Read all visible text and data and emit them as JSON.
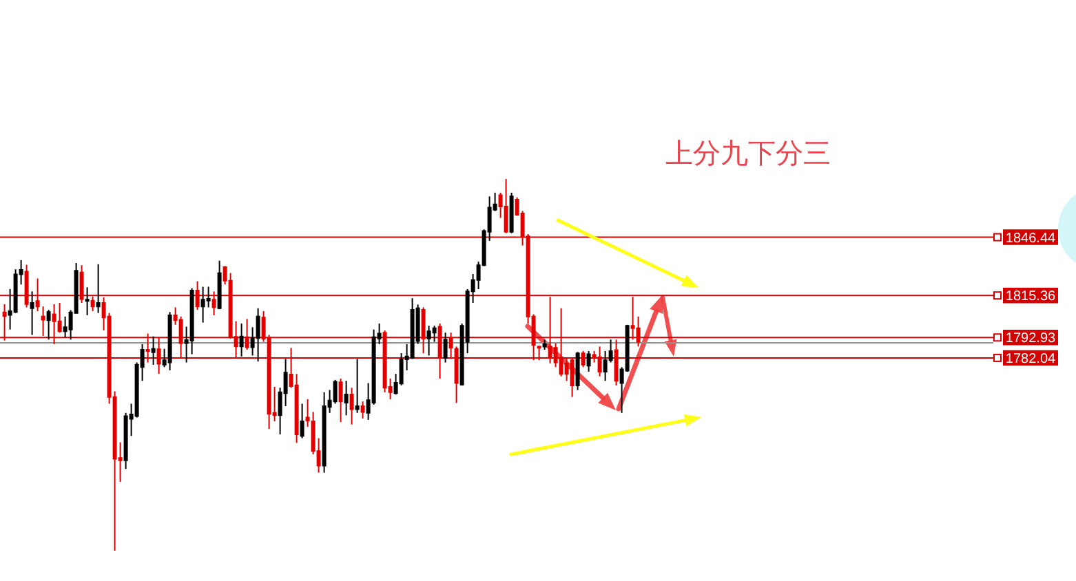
{
  "chart_data": {
    "type": "candlestick",
    "categories": [
      null,
      null,
      null,
      null,
      null,
      null,
      null,
      null,
      null,
      null,
      null,
      null,
      null,
      null,
      null,
      null,
      null,
      null,
      null,
      null,
      null,
      null,
      null,
      null,
      null,
      null,
      null,
      null,
      null,
      null,
      null,
      null,
      null,
      null,
      null,
      null,
      null,
      null,
      null,
      null,
      null,
      null,
      null,
      null,
      null,
      null,
      null,
      null,
      null,
      null,
      null,
      null,
      null,
      null,
      null,
      null,
      null,
      null,
      null,
      null,
      null,
      null,
      null,
      null,
      null,
      null,
      null,
      null,
      null,
      null,
      null,
      null,
      null,
      null,
      null,
      null,
      null,
      null,
      null,
      null,
      null,
      null,
      null,
      null,
      null,
      null,
      null,
      null,
      null,
      null,
      null,
      null,
      null,
      null,
      null,
      null,
      null,
      null,
      null,
      null,
      null,
      null,
      null,
      null,
      null,
      null,
      null,
      null,
      null,
      null,
      null,
      null,
      null,
      null,
      null,
      null
    ],
    "ohlc": [
      [
        1806.3,
        1810.7,
        1791.3,
        1804.3
      ],
      [
        1805.0,
        1818.8,
        1797.2,
        1807.0
      ],
      [
        1806.5,
        1829.3,
        1806.0,
        1826.6
      ],
      [
        1826.6,
        1834.2,
        1821.2,
        1829.0
      ],
      [
        1828.1,
        1831.7,
        1809.0,
        1810.7
      ],
      [
        1808.5,
        1817.5,
        1794.3,
        1811.4
      ],
      [
        1812.4,
        1824.4,
        1807.0,
        1809.5
      ],
      [
        1804.1,
        1809.5,
        1793.8,
        1802.4
      ],
      [
        1802.1,
        1807.7,
        1791.8,
        1806.5
      ],
      [
        1805.3,
        1810.7,
        1789.4,
        1801.6
      ],
      [
        1801.6,
        1811.4,
        1795.5,
        1796.2
      ],
      [
        1796.2,
        1804.1,
        1793.1,
        1798.4
      ],
      [
        1797.2,
        1807.5,
        1791.8,
        1806.3
      ],
      [
        1806.0,
        1832.7,
        1805.8,
        1828.6
      ],
      [
        1827.6,
        1831.5,
        1811.4,
        1813.4
      ],
      [
        1812.4,
        1819.7,
        1804.8,
        1813.1
      ],
      [
        1812.6,
        1814.8,
        1807.0,
        1809.5
      ],
      [
        1809.5,
        1832.0,
        1806.0,
        1811.4
      ],
      [
        1811.4,
        1814.3,
        1796.7,
        1803.6
      ],
      [
        1804.1,
        1806.0,
        1757.6,
        1761.2
      ],
      [
        1761.2,
        1764.2,
        1679.2,
        1728.2
      ],
      [
        1728.7,
        1737.0,
        1715.9,
        1727.4
      ],
      [
        1727.4,
        1752.7,
        1722.8,
        1751.0
      ],
      [
        1749.5,
        1757.6,
        1740.4,
        1751.9
      ],
      [
        1751.0,
        1779.6,
        1750.2,
        1778.4
      ],
      [
        1777.1,
        1789.4,
        1769.8,
        1786.4
      ],
      [
        1786.4,
        1795.0,
        1779.6,
        1785.7
      ],
      [
        1785.0,
        1793.5,
        1778.4,
        1786.9
      ],
      [
        1786.7,
        1793.1,
        1773.5,
        1778.9
      ],
      [
        1778.4,
        1786.9,
        1777.1,
        1780.8
      ],
      [
        1779.6,
        1806.5,
        1775.4,
        1804.8
      ],
      [
        1804.8,
        1809.0,
        1799.7,
        1802.1
      ],
      [
        1802.4,
        1804.1,
        1782.0,
        1789.9
      ],
      [
        1789.9,
        1798.7,
        1779.6,
        1791.6
      ],
      [
        1791.3,
        1819.2,
        1784.0,
        1818.0
      ],
      [
        1818.0,
        1822.9,
        1807.7,
        1809.5
      ],
      [
        1809.5,
        1820.0,
        1800.9,
        1813.1
      ],
      [
        1812.6,
        1820.0,
        1809.0,
        1813.6
      ],
      [
        1813.1,
        1817.5,
        1804.8,
        1809.0
      ],
      [
        1808.5,
        1833.9,
        1808.0,
        1827.3
      ],
      [
        1830.5,
        1831.0,
        1821.2,
        1823.2
      ],
      [
        1823.2,
        1827.3,
        1792.3,
        1793.1
      ],
      [
        1793.3,
        1801.6,
        1782.0,
        1788.2
      ],
      [
        1788.2,
        1800.4,
        1782.8,
        1793.5
      ],
      [
        1793.1,
        1802.8,
        1786.4,
        1787.7
      ],
      [
        1787.7,
        1798.4,
        1783.3,
        1792.6
      ],
      [
        1792.6,
        1808.5,
        1780.1,
        1804.1
      ],
      [
        1803.6,
        1807.0,
        1790.6,
        1792.3
      ],
      [
        1792.8,
        1794.3,
        1744.1,
        1752.2
      ],
      [
        1752.7,
        1766.6,
        1748.2,
        1751.4
      ],
      [
        1751.4,
        1766.1,
        1741.2,
        1763.7
      ],
      [
        1763.2,
        1781.5,
        1756.3,
        1774.2
      ],
      [
        1773.2,
        1787.4,
        1766.1,
        1766.9
      ],
      [
        1767.4,
        1773.5,
        1736.7,
        1741.2
      ],
      [
        1740.4,
        1757.6,
        1739.2,
        1748.2
      ],
      [
        1750.2,
        1760.0,
        1745.3,
        1748.5
      ],
      [
        1748.2,
        1753.2,
        1730.6,
        1732.3
      ],
      [
        1732.3,
        1739.2,
        1720.8,
        1724.5
      ],
      [
        1724.5,
        1763.7,
        1720.8,
        1756.3
      ],
      [
        1755.8,
        1764.9,
        1752.7,
        1759.3
      ],
      [
        1758.8,
        1770.3,
        1757.6,
        1769.3
      ],
      [
        1769.1,
        1771.0,
        1747.8,
        1758.8
      ],
      [
        1758.1,
        1769.8,
        1751.4,
        1762.5
      ],
      [
        1762.5,
        1766.1,
        1746.5,
        1754.6
      ],
      [
        1754.6,
        1781.5,
        1752.7,
        1756.3
      ],
      [
        1756.3,
        1758.8,
        1749.7,
        1753.2
      ],
      [
        1752.7,
        1768.6,
        1749.0,
        1759.5
      ],
      [
        1758.1,
        1797.2,
        1757.1,
        1793.1
      ],
      [
        1792.3,
        1800.4,
        1789.4,
        1795.0
      ],
      [
        1795.5,
        1796.7,
        1763.7,
        1766.1
      ],
      [
        1766.6,
        1771.0,
        1760.0,
        1763.7
      ],
      [
        1763.2,
        1773.5,
        1762.5,
        1768.8
      ],
      [
        1768.3,
        1784.5,
        1767.4,
        1781.3
      ],
      [
        1781.3,
        1789.4,
        1775.4,
        1782.8
      ],
      [
        1782.0,
        1813.9,
        1781.5,
        1807.7
      ],
      [
        1791.0,
        1810.5,
        1789.5,
        1808.5
      ],
      [
        1807.7,
        1809.0,
        1784.5,
        1792.3
      ],
      [
        1792.3,
        1799.2,
        1783.3,
        1796.2
      ],
      [
        1795.5,
        1799.2,
        1790.6,
        1797.9
      ],
      [
        1798.7,
        1800.4,
        1771.0,
        1782.0
      ],
      [
        1782.0,
        1795.5,
        1779.6,
        1791.8
      ],
      [
        1792.3,
        1795.5,
        1782.0,
        1787.4
      ],
      [
        1786.9,
        1788.1,
        1758.0,
        1768.6
      ],
      [
        1767.8,
        1800.4,
        1767.3,
        1799.2
      ],
      [
        1790.6,
        1818.7,
        1784.5,
        1817.5
      ],
      [
        1817.5,
        1826.8,
        1811.4,
        1823.6
      ],
      [
        1823.6,
        1833.4,
        1818.7,
        1831.5
      ],
      [
        1831.5,
        1850.6,
        1831.0,
        1849.8
      ],
      [
        1849.3,
        1868.2,
        1844.5,
        1862.3
      ],
      [
        1861.1,
        1870.2,
        1860.4,
        1864.0
      ],
      [
        1868.9,
        1870.2,
        1856.7,
        1862.8
      ],
      [
        1862.8,
        1877.5,
        1848.6,
        1849.3
      ],
      [
        1849.3,
        1870.2,
        1848.6,
        1868.2
      ],
      [
        1866.5,
        1867.7,
        1857.9,
        1858.4
      ],
      [
        1859.1,
        1860.4,
        1842.0,
        1846.9
      ],
      [
        1846.9,
        1848.1,
        1800.4,
        1804.1
      ],
      [
        1804.1,
        1805.3,
        1780.8,
        1788.9
      ],
      [
        1788.1,
        1788.5,
        1780.8,
        1787.4
      ],
      [
        1788.1,
        1791.8,
        1786.4,
        1789.4
      ],
      [
        1788.1,
        1814.6,
        1779.1,
        1782.0
      ],
      [
        1787.4,
        1789.9,
        1777.1,
        1779.6
      ],
      [
        1782.0,
        1808.5,
        1772.2,
        1773.5
      ],
      [
        1779.1,
        1782.0,
        1769.8,
        1773.5
      ],
      [
        1780.8,
        1782.0,
        1761.2,
        1767.3
      ],
      [
        1767.3,
        1785.2,
        1764.9,
        1784.5
      ],
      [
        1784.5,
        1785.7,
        1777.1,
        1778.4
      ],
      [
        1777.9,
        1785.7,
        1774.7,
        1784.0
      ],
      [
        1783.7,
        1785.7,
        1779.6,
        1782.5
      ],
      [
        1782.5,
        1788.1,
        1772.2,
        1774.7
      ],
      [
        1774.7,
        1785.7,
        1769.8,
        1780.8
      ],
      [
        1780.8,
        1791.8,
        1779.6,
        1785.7
      ],
      [
        1786.2,
        1791.8,
        1767.3,
        1769.8
      ],
      [
        1768.6,
        1777.1,
        1752.7,
        1775.9
      ],
      [
        1775.2,
        1799.7,
        1774.7,
        1799.2
      ],
      [
        1799.2,
        1814.6,
        1791.8,
        1797.9
      ],
      [
        1797.9,
        1804.1,
        1788.1,
        1790.6
      ]
    ],
    "colors": [
      "#e00000",
      "#000000",
      "#000000",
      "#000000",
      "#e00000",
      "#000000",
      "#e00000",
      "#e00000",
      "#000000",
      "#e00000",
      "#e00000",
      "#000000",
      "#000000",
      "#000000",
      "#e00000",
      "#000000",
      "#e00000",
      "#000000",
      "#e00000",
      "#e00000",
      "#e00000",
      "#e00000",
      "#000000",
      "#000000",
      "#000000",
      "#000000",
      "#e00000",
      "#000000",
      "#e00000",
      "#000000",
      "#000000",
      "#e00000",
      "#e00000",
      "#000000",
      "#000000",
      "#e00000",
      "#000000",
      "#000000",
      "#e00000",
      "#000000",
      "#e00000",
      "#e00000",
      "#e00000",
      "#000000",
      "#e00000",
      "#000000",
      "#000000",
      "#e00000",
      "#e00000",
      "#e00000",
      "#000000",
      "#000000",
      "#e00000",
      "#e00000",
      "#000000",
      "#e00000",
      "#e00000",
      "#e00000",
      "#000000",
      "#000000",
      "#000000",
      "#e00000",
      "#000000",
      "#e00000",
      "#000000",
      "#e00000",
      "#000000",
      "#000000",
      "#000000",
      "#e00000",
      "#e00000",
      "#000000",
      "#000000",
      "#000000",
      "#000000",
      "#000000",
      "#e00000",
      "#000000",
      "#000000",
      "#e00000",
      "#000000",
      "#e00000",
      "#e00000",
      "#000000",
      "#000000",
      "#000000",
      "#000000",
      "#000000",
      "#000000",
      "#000000",
      "#e00000",
      "#e00000",
      "#000000",
      "#e00000",
      "#e00000",
      "#e00000",
      "#e00000",
      "#e00000",
      "#000000",
      "#e00000",
      "#e00000",
      "#e00000",
      "#e00000",
      "#e00000",
      "#000000",
      "#e00000",
      "#000000",
      "#e00000",
      "#e00000",
      "#000000",
      "#000000",
      "#e00000",
      "#000000",
      "#000000",
      "#e00000",
      "#e00000"
    ],
    "ylim": [
      1663,
      1973
    ],
    "ref_lines": [
      {
        "axis": "y",
        "value": 1846.44,
        "label": "1846.44",
        "color": "#d40000"
      },
      {
        "axis": "y",
        "value": 1815.36,
        "label": "1815.36",
        "color": "#d40000"
      },
      {
        "axis": "y",
        "value": 1792.93,
        "label": "1792.93",
        "color": "#d40000"
      },
      {
        "axis": "y",
        "value": 1790.1,
        "color": "#909090"
      },
      {
        "axis": "y",
        "value": 1782.04,
        "label": "1782.04",
        "color": "#d40000"
      }
    ],
    "annotations": [
      "上分九下分三"
    ],
    "tick_labels": false
  }
}
